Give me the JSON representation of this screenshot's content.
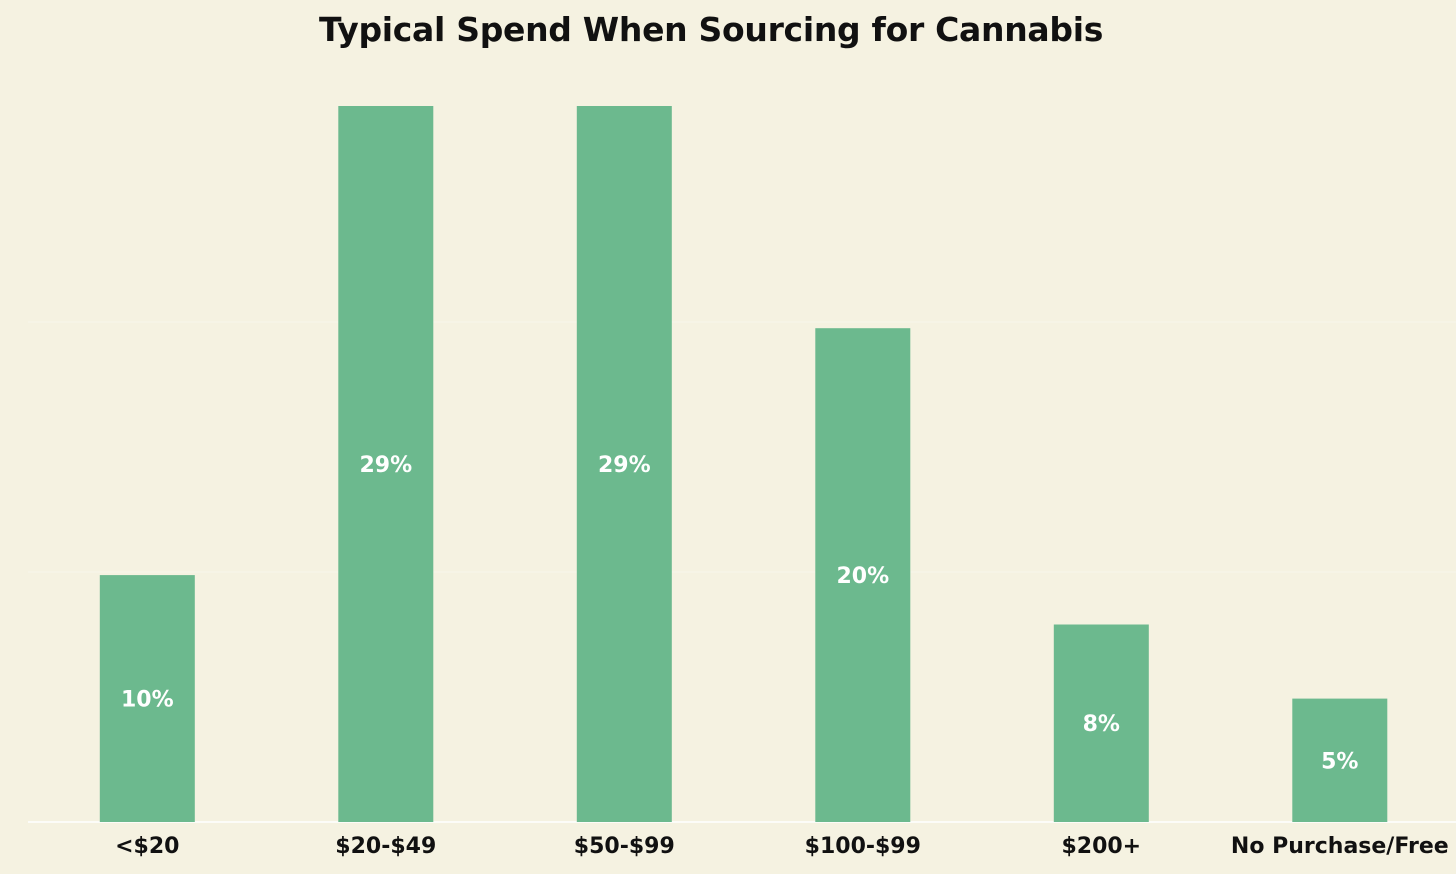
{
  "chart_data": {
    "type": "bar",
    "title": "Typical Spend When Sourcing for Cannabis",
    "xlabel": "",
    "ylabel": "",
    "categories": [
      "<$20",
      "$20-$49",
      "$50-$99",
      "$100-$99",
      "$200+",
      "No Purchase/Free"
    ],
    "values": [
      10,
      29,
      29,
      20,
      8,
      5
    ],
    "value_labels": [
      "10%",
      "29%",
      "29%",
      "20%",
      "8%",
      "5%"
    ],
    "ylim": [
      0,
      29
    ],
    "grid": true,
    "bar_color": "#6cb98e",
    "label_color": "#ffffff",
    "background_color": "#f5f2e1"
  }
}
